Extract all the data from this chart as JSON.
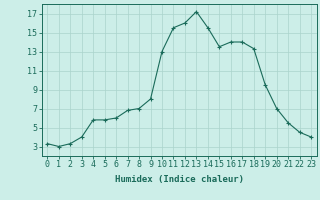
{
  "x": [
    0,
    1,
    2,
    3,
    4,
    5,
    6,
    7,
    8,
    9,
    10,
    11,
    12,
    13,
    14,
    15,
    16,
    17,
    18,
    19,
    20,
    21,
    22,
    23
  ],
  "y": [
    3.3,
    3.0,
    3.3,
    4.0,
    5.8,
    5.8,
    6.0,
    6.8,
    7.0,
    8.0,
    13.0,
    15.5,
    16.0,
    17.2,
    15.5,
    13.5,
    14.0,
    14.0,
    13.3,
    9.5,
    7.0,
    5.5,
    4.5,
    4.0
  ],
  "line_color": "#1a6b5a",
  "marker": "+",
  "marker_size": 3,
  "bg_color": "#cceee8",
  "grid_color": "#aad4cc",
  "xlabel": "Humidex (Indice chaleur)",
  "ylim": [
    2,
    18
  ],
  "xlim": [
    -0.5,
    23.5
  ],
  "yticks": [
    3,
    5,
    7,
    9,
    11,
    13,
    15,
    17
  ],
  "xticks": [
    0,
    1,
    2,
    3,
    4,
    5,
    6,
    7,
    8,
    9,
    10,
    11,
    12,
    13,
    14,
    15,
    16,
    17,
    18,
    19,
    20,
    21,
    22,
    23
  ],
  "xtick_labels": [
    "0",
    "1",
    "2",
    "3",
    "4",
    "5",
    "6",
    "7",
    "8",
    "9",
    "10",
    "11",
    "12",
    "13",
    "14",
    "15",
    "16",
    "17",
    "18",
    "19",
    "20",
    "21",
    "22",
    "23"
  ],
  "tick_color": "#1a6b5a",
  "label_fontsize": 6.5,
  "tick_fontsize": 6.0
}
